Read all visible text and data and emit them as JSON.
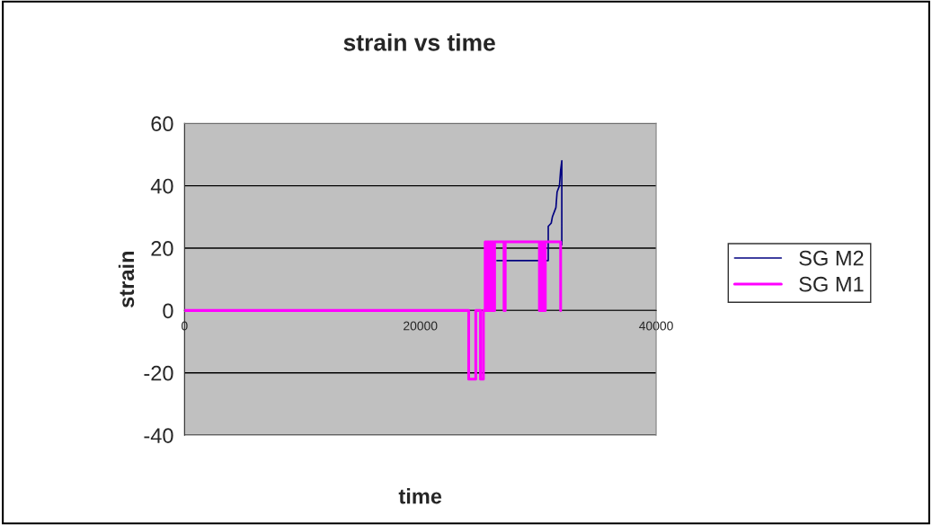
{
  "chart_data": {
    "type": "line",
    "title": "strain vs time",
    "xlabel": "time",
    "ylabel": "strain",
    "xlim": [
      0,
      40000
    ],
    "xticks": [
      0,
      20000,
      40000
    ],
    "ylim": [
      -40,
      60
    ],
    "yticks": [
      -40,
      -20,
      0,
      20,
      40,
      60
    ],
    "grid": "y",
    "legend": "right",
    "marker": "none",
    "line_style": "solid",
    "series": [
      {
        "name": "SG M2",
        "color": "#000080",
        "x": [
          26500,
          30850,
          30850,
          31100,
          31200,
          31400,
          31500,
          31600,
          31800,
          31900,
          32000,
          32000
        ],
        "values": [
          16,
          16,
          27,
          28,
          30,
          32,
          33,
          38,
          40,
          45,
          48,
          21
        ]
      },
      {
        "name": "SG M1",
        "color": "#ff00ff",
        "x": [
          0,
          24100,
          24100,
          24700,
          24700,
          25100,
          25100,
          25350,
          25350,
          25500,
          25500,
          25600,
          25600,
          25700,
          25700,
          25800,
          25800,
          25900,
          25900,
          26000,
          26000,
          26100,
          26100,
          26200,
          26200,
          26300,
          26300,
          26500,
          27100,
          27100,
          27200,
          27200,
          30100,
          30100,
          30200,
          30200,
          30300,
          30300,
          30400,
          30400,
          30500,
          30500,
          30600,
          30600,
          31900,
          31900
        ],
        "values": [
          0,
          0,
          -22,
          -22,
          0,
          0,
          -22,
          -22,
          0,
          0,
          22,
          22,
          0,
          0,
          22,
          22,
          0,
          0,
          22,
          22,
          0,
          0,
          22,
          22,
          0,
          0,
          22,
          22,
          22,
          0,
          0,
          22,
          22,
          0,
          0,
          22,
          22,
          0,
          0,
          22,
          22,
          0,
          0,
          22,
          22,
          0
        ]
      }
    ]
  }
}
